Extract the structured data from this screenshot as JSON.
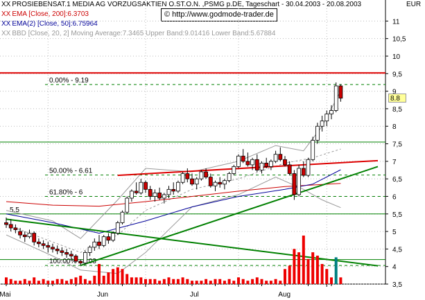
{
  "header": {
    "line1_mark": "XX",
    "line1": "PROSIEBENSAT.1 MEDIA AG VORZUGSAKTIEN O.ST.O.N. ,PSMG p.DE, Tageschart - 30.04.2003 - 20.08.2003",
    "line2_mark": "XX",
    "line2": "EMA [Close, 200]:6.3703",
    "line3_mark": "XX",
    "line3": "EMA(2) [Close, 50]:6.75964",
    "line4_mark": "XX",
    "line4": "BBD [Close, 20, 2] Moving Average:7.3465 Upper Band:9.01416 Lower Band:5.67884",
    "credit": "© http://www.godmode-trader.de",
    "currency": "EUR",
    "last_price": "8.8"
  },
  "colors": {
    "up_candle": "#ffffff",
    "down_candle": "#cc0000",
    "ema200": "#cc0000",
    "ema50": "#000099",
    "bollinger": "#999999",
    "trendline": "#008000",
    "resistance": "#dd0000",
    "grid": "#bbbbbb",
    "volume": "#ee0000",
    "volume_up": "#008080"
  },
  "chart_data": {
    "type": "candlestick",
    "title": "PROSIEBENSAT.1 MEDIA AG VORZUGSAKTIEN O.ST.O.N. ,PSMG p.DE, Tageschart - 30.04.2003 - 20.08.2003",
    "ylabel": "EUR",
    "ylim": [
      3.5,
      11.6
    ],
    "grid": true,
    "y_ticks": [
      3.5,
      4,
      4.5,
      5,
      5.5,
      6,
      6.5,
      7,
      7.5,
      8,
      8.5,
      9,
      9.5,
      10,
      10.5,
      11
    ],
    "y_tick_labels": [
      "3,5",
      "4",
      "4,5",
      "5",
      "5,5",
      "6",
      "6,5",
      "7",
      "7,5",
      "8",
      "8,5",
      "9",
      "9,5",
      "10",
      "10,5",
      "11"
    ],
    "x_month_labels": [
      {
        "label": "Mai",
        "index": 9
      },
      {
        "label": "Jun",
        "index": 30
      },
      {
        "label": "Jul",
        "index": 50
      },
      {
        "label": "Aug",
        "index": 69
      }
    ],
    "ohlc": [
      [
        5.25,
        5.4,
        5.1,
        5.2
      ],
      [
        5.2,
        5.35,
        5.0,
        5.1
      ],
      [
        5.1,
        5.2,
        4.95,
        5.05
      ],
      [
        5.0,
        5.1,
        4.8,
        4.9
      ],
      [
        4.9,
        5.0,
        4.7,
        4.85
      ],
      [
        4.85,
        5.05,
        4.8,
        4.95
      ],
      [
        4.95,
        5.0,
        4.6,
        4.7
      ],
      [
        4.7,
        4.8,
        4.55,
        4.65
      ],
      [
        4.65,
        4.75,
        4.5,
        4.6
      ],
      [
        4.6,
        4.7,
        4.4,
        4.55
      ],
      [
        4.55,
        4.65,
        4.4,
        4.5
      ],
      [
        4.5,
        4.6,
        4.35,
        4.45
      ],
      [
        4.45,
        4.55,
        4.3,
        4.4
      ],
      [
        4.4,
        4.5,
        4.25,
        4.35
      ],
      [
        4.35,
        4.45,
        4.2,
        4.3
      ],
      [
        4.3,
        4.35,
        4.1,
        4.15
      ],
      [
        4.15,
        4.2,
        4.03,
        4.1
      ],
      [
        4.1,
        4.45,
        4.05,
        4.4
      ],
      [
        4.4,
        4.6,
        4.3,
        4.55
      ],
      [
        4.55,
        4.8,
        4.45,
        4.7
      ],
      [
        4.7,
        4.9,
        4.5,
        4.6
      ],
      [
        4.6,
        4.9,
        4.55,
        4.85
      ],
      [
        4.85,
        4.95,
        4.65,
        4.75
      ],
      [
        4.75,
        5.0,
        4.7,
        4.95
      ],
      [
        4.95,
        5.3,
        4.9,
        5.25
      ],
      [
        5.25,
        5.6,
        5.2,
        5.55
      ],
      [
        5.55,
        6.0,
        5.5,
        5.95
      ],
      [
        5.95,
        6.2,
        5.85,
        6.15
      ],
      [
        6.15,
        6.4,
        6.05,
        6.1
      ],
      [
        6.1,
        6.5,
        6.05,
        6.4
      ],
      [
        6.4,
        6.45,
        6.1,
        6.2
      ],
      [
        6.2,
        6.3,
        5.9,
        6.0
      ],
      [
        6.0,
        6.2,
        5.85,
        6.1
      ],
      [
        6.1,
        6.25,
        5.9,
        5.95
      ],
      [
        5.95,
        6.1,
        5.8,
        6.05
      ],
      [
        6.05,
        6.3,
        5.95,
        6.2
      ],
      [
        6.2,
        6.4,
        6.05,
        6.15
      ],
      [
        6.15,
        6.45,
        6.1,
        6.4
      ],
      [
        6.4,
        6.7,
        6.35,
        6.65
      ],
      [
        6.65,
        6.8,
        6.4,
        6.5
      ],
      [
        6.5,
        6.65,
        6.3,
        6.35
      ],
      [
        6.35,
        6.55,
        6.2,
        6.5
      ],
      [
        6.5,
        6.75,
        6.45,
        6.7
      ],
      [
        6.7,
        6.8,
        6.5,
        6.55
      ],
      [
        6.55,
        6.65,
        6.25,
        6.3
      ],
      [
        6.3,
        6.45,
        6.15,
        6.4
      ],
      [
        6.4,
        6.55,
        6.25,
        6.35
      ],
      [
        6.35,
        6.5,
        6.2,
        6.45
      ],
      [
        6.45,
        6.7,
        6.4,
        6.65
      ],
      [
        6.65,
        6.9,
        6.6,
        6.85
      ],
      [
        6.85,
        7.2,
        6.8,
        7.15
      ],
      [
        7.15,
        7.35,
        6.95,
        7.0
      ],
      [
        7.0,
        7.25,
        6.85,
        6.9
      ],
      [
        6.9,
        7.1,
        6.75,
        7.05
      ],
      [
        7.05,
        7.2,
        6.7,
        6.75
      ],
      [
        6.75,
        7.0,
        6.65,
        6.95
      ],
      [
        6.95,
        7.1,
        6.8,
        6.85
      ],
      [
        6.85,
        7.05,
        6.75,
        7.0
      ],
      [
        7.0,
        7.3,
        6.95,
        7.2
      ],
      [
        7.2,
        7.4,
        7.0,
        7.05
      ],
      [
        7.05,
        7.15,
        6.85,
        6.9
      ],
      [
        6.9,
        7.0,
        6.6,
        6.65
      ],
      [
        6.65,
        6.75,
        5.9,
        6.05
      ],
      [
        6.05,
        6.9,
        6.0,
        6.8
      ],
      [
        6.8,
        7.0,
        6.55,
        6.6
      ],
      [
        6.6,
        7.1,
        6.55,
        7.05
      ],
      [
        7.05,
        7.7,
        7.0,
        7.6
      ],
      [
        7.6,
        8.1,
        7.5,
        8.0
      ],
      [
        8.0,
        8.3,
        7.85,
        8.15
      ],
      [
        8.15,
        8.45,
        8.0,
        8.35
      ],
      [
        8.35,
        8.6,
        8.2,
        8.45
      ],
      [
        8.45,
        9.25,
        8.4,
        9.15
      ],
      [
        9.15,
        9.2,
        8.7,
        8.8
      ]
    ],
    "volume": [
      4,
      3,
      2,
      2,
      3,
      2,
      4,
      2,
      3,
      2,
      2,
      3,
      3,
      2,
      3,
      4,
      5,
      3,
      2,
      5,
      12,
      5,
      7,
      9,
      10,
      9,
      6,
      4,
      4,
      4,
      3,
      3,
      3,
      2,
      3,
      4,
      3,
      3,
      4,
      3,
      2,
      2,
      2,
      3,
      2,
      3,
      3,
      2,
      3,
      2,
      4,
      3,
      2,
      3,
      4,
      3,
      2,
      2,
      3,
      2,
      9,
      11,
      21,
      19,
      29,
      15,
      19,
      17,
      12,
      9,
      4,
      16,
      4
    ],
    "volume_up_days": [
      71
    ],
    "ema200": [
      [
        0,
        5.85
      ],
      [
        10,
        5.75
      ],
      [
        20,
        5.72
      ],
      [
        30,
        5.85
      ],
      [
        40,
        6.0
      ],
      [
        50,
        6.15
      ],
      [
        60,
        6.28
      ],
      [
        72,
        6.37
      ]
    ],
    "ema50": [
      [
        0,
        5.5
      ],
      [
        10,
        5.25
      ],
      [
        20,
        4.95
      ],
      [
        30,
        5.3
      ],
      [
        40,
        5.7
      ],
      [
        50,
        6.0
      ],
      [
        60,
        6.2
      ],
      [
        66,
        6.35
      ],
      [
        72,
        6.76
      ]
    ],
    "bollinger_ma": [
      [
        0,
        5.2
      ],
      [
        10,
        4.7
      ],
      [
        16,
        4.4
      ],
      [
        24,
        4.9
      ],
      [
        30,
        5.6
      ],
      [
        40,
        6.2
      ],
      [
        50,
        6.5
      ],
      [
        60,
        6.95
      ],
      [
        66,
        7.1
      ],
      [
        72,
        7.35
      ]
    ],
    "bollinger_upper": [
      [
        0,
        5.6
      ],
      [
        10,
        5.3
      ],
      [
        16,
        4.8
      ],
      [
        24,
        5.9
      ],
      [
        30,
        6.8
      ],
      [
        40,
        6.7
      ],
      [
        50,
        7.0
      ],
      [
        58,
        7.45
      ],
      [
        64,
        7.3
      ],
      [
        68,
        8.0
      ],
      [
        72,
        9.01
      ]
    ],
    "bollinger_lower": [
      [
        0,
        4.9
      ],
      [
        10,
        4.3
      ],
      [
        16,
        3.9
      ],
      [
        24,
        3.8
      ],
      [
        30,
        4.4
      ],
      [
        40,
        5.7
      ],
      [
        50,
        6.05
      ],
      [
        58,
        6.55
      ],
      [
        64,
        6.2
      ],
      [
        68,
        5.9
      ],
      [
        72,
        5.68
      ]
    ],
    "horizontal_lines": [
      {
        "y": 9.52,
        "label": "",
        "color": "#dd0000"
      },
      {
        "y": 4.2,
        "label": "",
        "color": "#008000"
      },
      {
        "y": 5.5,
        "label": "5.5",
        "color": "#008000"
      },
      {
        "y": 7.55,
        "label": "",
        "color": "#008000"
      }
    ],
    "fib_lines": [
      {
        "y": 9.19,
        "label": "0.00% - 9.19"
      },
      {
        "y": 6.61,
        "label": "50.00% - 6.61"
      },
      {
        "y": 6.0,
        "label": "61.80% - 6"
      },
      {
        "y": 4.03,
        "label": "100.00% - 4.03"
      }
    ],
    "trendlines": [
      {
        "from": [
          0,
          5.35
        ],
        "to": [
          80,
          4.02
        ],
        "color": "#008000"
      },
      {
        "from": [
          16,
          4.03
        ],
        "to": [
          80,
          6.85
        ],
        "color": "#008000"
      },
      {
        "from": [
          24,
          6.6
        ],
        "to": [
          80,
          7.02
        ],
        "color": "#dd0000"
      }
    ]
  }
}
